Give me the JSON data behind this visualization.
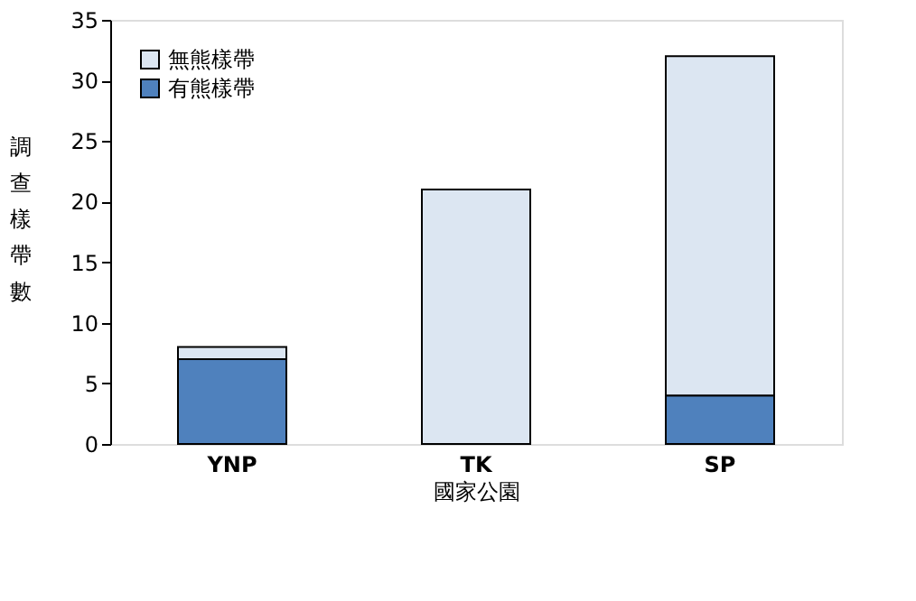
{
  "chart_data": {
    "type": "bar",
    "stacked": true,
    "xlabel": "國家公園",
    "ylabel": "調查樣帶數",
    "categories": [
      "YNP",
      "TK",
      "SP"
    ],
    "series": [
      {
        "name": "有熊樣帶",
        "color": "#4f81bd",
        "values": [
          7,
          0,
          4
        ]
      },
      {
        "name": "無熊樣帶",
        "color": "#dce6f2",
        "values": [
          1,
          21,
          28
        ]
      }
    ],
    "ylim": [
      0,
      35
    ],
    "yticks": [
      0,
      5,
      10,
      15,
      20,
      25,
      30,
      35
    ],
    "grid": false,
    "legend": "top left"
  }
}
